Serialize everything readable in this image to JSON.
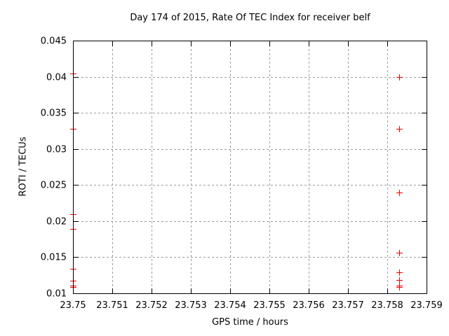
{
  "chart_data": {
    "type": "scatter",
    "title": "Day 174 of 2015, Rate Of TEC Index for receiver belf",
    "xlabel": "GPS time / hours",
    "ylabel": "ROTI / TECUs",
    "xlim": [
      23.75,
      23.759
    ],
    "ylim": [
      0.01,
      0.045
    ],
    "grid": true,
    "legend": "none",
    "axis_color": "#000000",
    "grid_color": "#9c9c9c",
    "background_color": "#ffffff",
    "marker": {
      "shape": "plus-icon",
      "color": "#ee0000",
      "size": 9
    },
    "x_ticks": [
      {
        "value": 23.75,
        "label": "23.75"
      },
      {
        "value": 23.751,
        "label": "23.751"
      },
      {
        "value": 23.752,
        "label": "23.752"
      },
      {
        "value": 23.753,
        "label": "23.753"
      },
      {
        "value": 23.754,
        "label": "23.754"
      },
      {
        "value": 23.755,
        "label": "23.755"
      },
      {
        "value": 23.756,
        "label": "23.756"
      },
      {
        "value": 23.757,
        "label": "23.757"
      },
      {
        "value": 23.758,
        "label": "23.758"
      },
      {
        "value": 23.759,
        "label": "23.759"
      }
    ],
    "y_ticks": [
      {
        "value": 0.01,
        "label": "0.01"
      },
      {
        "value": 0.015,
        "label": "0.015"
      },
      {
        "value": 0.02,
        "label": "0.02"
      },
      {
        "value": 0.025,
        "label": "0.025"
      },
      {
        "value": 0.03,
        "label": "0.03"
      },
      {
        "value": 0.035,
        "label": "0.035"
      },
      {
        "value": 0.04,
        "label": "0.04"
      },
      {
        "value": 0.045,
        "label": "0.045"
      }
    ],
    "series": [
      {
        "name": "ROTI",
        "points": [
          [
            23.75,
            0.0404
          ],
          [
            23.75,
            0.0328
          ],
          [
            23.75,
            0.021
          ],
          [
            23.75,
            0.0189
          ],
          [
            23.75,
            0.0134
          ],
          [
            23.75,
            0.0117
          ],
          [
            23.75,
            0.0111
          ],
          [
            23.75,
            0.0109
          ],
          [
            23.7583,
            0.04
          ],
          [
            23.7583,
            0.0328
          ],
          [
            23.7583,
            0.024
          ],
          [
            23.7583,
            0.0156
          ],
          [
            23.7583,
            0.0129
          ],
          [
            23.7583,
            0.0118
          ],
          [
            23.7583,
            0.0111
          ],
          [
            23.7583,
            0.0109
          ]
        ]
      }
    ]
  }
}
